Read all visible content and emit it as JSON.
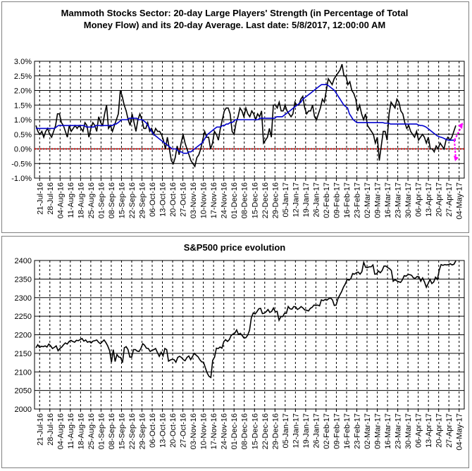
{
  "chart_data": [
    {
      "type": "line",
      "title_lines": [
        "Mammoth Stocks Sector: 20-day Large Players' Strength (in Percentage of Total",
        "Money Flow) and its 20-day Average. Last date: 5/8/2017, 12:00:00 AM"
      ],
      "ylim": [
        -1.0,
        3.0
      ],
      "yticks": [
        "-1.0%",
        "-0.5%",
        "0.0%",
        "0.5%",
        "1.0%",
        "1.5%",
        "2.0%",
        "2.5%",
        "3.0%"
      ],
      "x_tick_labels": [
        "21-Jul-16",
        "28-Jul-16",
        "04-Aug-16",
        "11-Aug-16",
        "18-Aug-16",
        "25-Aug-16",
        "01-Sep-16",
        "08-Sep-16",
        "15-Sep-16",
        "22-Sep-16",
        "29-Sep-16",
        "06-Oct-16",
        "13-Oct-16",
        "20-Oct-16",
        "27-Oct-16",
        "03-Nov-16",
        "10-Nov-16",
        "17-Nov-16",
        "24-Nov-16",
        "01-Dec-16",
        "08-Dec-16",
        "15-Dec-16",
        "22-Dec-16",
        "29-Dec-16",
        "05-Jan-17",
        "12-Jan-17",
        "19-Jan-17",
        "26-Jan-17",
        "02-Feb-17",
        "09-Feb-17",
        "16-Feb-17",
        "23-Feb-17",
        "02-Mar-17",
        "09-Mar-17",
        "16-Mar-17",
        "23-Mar-17",
        "30-Mar-17",
        "06-Apr-17",
        "13-Apr-17",
        "20-Apr-17",
        "27-Apr-17",
        "04-May-17"
      ],
      "grid": true,
      "series": [
        {
          "color": "#000000",
          "values": [
            0.8,
            0.6,
            0.5,
            0.6,
            0.4,
            0.6,
            0.7,
            0.5,
            0.4,
            0.6,
            0.8,
            1.2,
            1.2,
            0.9,
            0.8,
            0.6,
            0.4,
            0.8,
            0.6,
            0.7,
            0.8,
            0.7,
            0.8,
            0.7,
            0.6,
            0.9,
            0.8,
            0.4,
            0.7,
            0.9,
            0.8,
            0.6,
            1.1,
            0.9,
            0.8,
            1.2,
            1.5,
            0.7,
            0.8,
            0.6,
            0.8,
            1.0,
            1.2,
            2.0,
            1.8,
            1.5,
            1.3,
            1.0,
            0.8,
            1.2,
            0.9,
            0.6,
            1.0,
            1.2,
            1.0,
            0.7,
            0.7,
            0.9,
            0.6,
            0.7,
            0.5,
            0.7,
            0.6,
            0.6,
            0.5,
            0.3,
            0.0,
            0.4,
            0.0,
            -0.4,
            -0.5,
            -0.3,
            0.1,
            -0.2,
            0.2,
            0.5,
            0.2,
            0.0,
            -0.2,
            -0.4,
            -0.5,
            -0.6,
            -0.3,
            -0.2,
            0.0,
            0.3,
            0.6,
            0.4,
            0.4,
            0.0,
            0.2,
            0.6,
            0.5,
            0.3,
            0.7,
            1.0,
            1.3,
            1.4,
            1.4,
            1.2,
            0.6,
            0.5,
            0.9,
            1.1,
            1.4,
            1.3,
            1.1,
            1.4,
            1.2,
            1.1,
            1.3,
            1.2,
            1.0,
            1.2,
            1.1,
            1.3,
            0.2,
            0.3,
            0.4,
            0.7,
            0.4,
            1.5,
            1.5,
            1.4,
            1.6,
            1.3,
            1.3,
            1.5,
            1.3,
            1.2,
            1.1,
            1.2,
            1.6,
            1.5,
            1.5,
            1.7,
            1.8,
            1.4,
            1.2,
            1.3,
            1.3,
            1.5,
            1.1,
            1.0,
            1.2,
            1.4,
            1.7,
            1.6,
            2.0,
            2.4,
            2.3,
            2.2,
            2.4,
            2.5,
            2.6,
            2.7,
            2.9,
            2.5,
            2.5,
            2.2,
            2.3,
            2.0,
            1.9,
            1.7,
            1.3,
            1.5,
            1.2,
            1.0,
            1.2,
            0.8,
            0.7,
            0.6,
            0.5,
            0.2,
            0.4,
            -0.4,
            0.1,
            0.6,
            0.6,
            0.3,
            1.2,
            1.6,
            1.5,
            1.4,
            1.7,
            1.6,
            1.3,
            1.2,
            0.9,
            0.7,
            0.8,
            0.6,
            0.5,
            0.4,
            0.6,
            0.3,
            0.4,
            0.5,
            0.4,
            0.2,
            0.4,
            0.0,
            0.0,
            -0.1,
            0.1,
            0.0,
            0.2,
            0.1,
            0.0,
            0.3,
            0.4,
            0.3,
            0.4,
            0.6,
            0.8
          ]
        },
        {
          "color": "#0000cc",
          "values": [
            0.7,
            0.7,
            0.7,
            0.7,
            0.7,
            0.7,
            0.7,
            0.7,
            0.7,
            0.7,
            0.7,
            0.75,
            0.8,
            0.8,
            0.8,
            0.8,
            0.8,
            0.8,
            0.8,
            0.8,
            0.8,
            0.8,
            0.8,
            0.8,
            0.8,
            0.8,
            0.8,
            0.75,
            0.75,
            0.75,
            0.75,
            0.75,
            0.8,
            0.8,
            0.8,
            0.8,
            0.8,
            0.8,
            0.8,
            0.8,
            0.8,
            0.8,
            0.85,
            0.85,
            0.9,
            0.95,
            1.0,
            1.0,
            1.0,
            1.0,
            1.05,
            1.05,
            1.05,
            1.05,
            1.05,
            1.0,
            1.0,
            1.0,
            0.95,
            0.9,
            0.8,
            0.7,
            0.6,
            0.5,
            0.45,
            0.4,
            0.35,
            0.3,
            0.25,
            0.2,
            0.15,
            0.1,
            0.05,
            0.0,
            0.0,
            0.0,
            -0.05,
            -0.1,
            -0.1,
            -0.15,
            -0.15,
            -0.15,
            -0.1,
            -0.1,
            -0.05,
            0.0,
            0.05,
            0.1,
            0.15,
            0.2,
            0.3,
            0.4,
            0.5,
            0.55,
            0.6,
            0.65,
            0.7,
            0.75,
            0.75,
            0.75,
            0.8,
            0.8,
            0.85,
            0.85,
            0.9,
            0.9,
            0.95,
            1.0,
            1.0,
            1.0,
            1.0,
            1.0,
            1.0,
            1.0,
            1.0,
            1.0,
            1.0,
            1.0,
            1.0,
            1.0,
            1.05,
            1.05,
            1.05,
            1.05,
            1.05,
            1.05,
            1.05,
            1.05,
            1.05,
            1.1,
            1.1,
            1.1,
            1.1,
            1.15,
            1.2,
            1.25,
            1.3,
            1.35,
            1.4,
            1.45,
            1.5,
            1.55,
            1.6,
            1.7,
            1.75,
            1.8,
            1.85,
            1.9,
            1.95,
            2.0,
            2.05,
            2.1,
            2.15,
            2.2,
            2.2,
            2.2,
            2.2,
            2.15,
            2.1,
            2.05,
            2.0,
            1.9,
            1.8,
            1.7,
            1.6,
            1.5,
            1.45,
            1.4,
            1.2,
            1.1,
            1.0,
            0.95,
            0.9,
            0.9,
            0.9,
            0.9,
            0.9,
            0.9,
            0.9,
            0.9,
            0.9,
            0.9,
            0.9,
            0.9,
            0.9,
            0.9,
            0.9,
            0.88,
            0.88,
            0.88,
            0.85,
            0.85,
            0.85,
            0.85,
            0.85,
            0.85,
            0.85,
            0.85,
            0.85,
            0.85,
            0.85,
            0.85,
            0.85,
            0.85,
            0.85,
            0.82,
            0.8,
            0.8,
            0.78,
            0.75,
            0.7,
            0.65,
            0.6,
            0.55,
            0.5,
            0.45,
            0.42,
            0.4,
            0.38,
            0.35,
            0.32,
            0.3,
            0.3,
            0.3,
            0.3,
            0.3
          ]
        }
      ],
      "zero_line_color": "#cc0000",
      "forecast_arrows_color": "#ff00ff"
    },
    {
      "type": "line",
      "title": "S&P500 price evolution",
      "ylim": [
        2000,
        2400
      ],
      "yticks": [
        "2000",
        "2050",
        "2100",
        "2150",
        "2200",
        "2250",
        "2300",
        "2350",
        "2400"
      ],
      "x_tick_labels": [
        "21-Jul-16",
        "28-Jul-16",
        "04-Aug-16",
        "11-Aug-16",
        "18-Aug-16",
        "25-Aug-16",
        "01-Sep-16",
        "08-Sep-16",
        "15-Sep-16",
        "22-Sep-16",
        "29-Sep-16",
        "06-Oct-16",
        "13-Oct-16",
        "20-Oct-16",
        "27-Oct-16",
        "03-Nov-16",
        "10-Nov-16",
        "17-Nov-16",
        "24-Nov-16",
        "01-Dec-16",
        "08-Dec-16",
        "15-Dec-16",
        "22-Dec-16",
        "29-Dec-16",
        "05-Jan-17",
        "12-Jan-17",
        "19-Jan-17",
        "26-Jan-17",
        "02-Feb-17",
        "09-Feb-17",
        "16-Feb-17",
        "23-Feb-17",
        "02-Mar-17",
        "09-Mar-17",
        "16-Mar-17",
        "23-Mar-17",
        "30-Mar-17",
        "06-Apr-17",
        "13-Apr-17",
        "20-Apr-17",
        "27-Apr-17",
        "04-May-17"
      ],
      "grid": true,
      "series": [
        {
          "color": "#000000",
          "values": [
            2165,
            2173,
            2166,
            2169,
            2168,
            2170,
            2167,
            2175,
            2170,
            2163,
            2166,
            2170,
            2157,
            2163,
            2167,
            2173,
            2178,
            2175,
            2182,
            2185,
            2182,
            2180,
            2185,
            2184,
            2187,
            2190,
            2183,
            2186,
            2180,
            2182,
            2178,
            2183,
            2184,
            2186,
            2180,
            2176,
            2181,
            2186,
            2179,
            2170,
            2157,
            2126,
            2160,
            2128,
            2147,
            2140,
            2139,
            2125,
            2165,
            2168,
            2160,
            2140,
            2140,
            2160,
            2160,
            2156,
            2155,
            2163,
            2176,
            2172,
            2164,
            2163,
            2155,
            2158,
            2160,
            2163,
            2152,
            2142,
            2153,
            2143,
            2163,
            2160,
            2129,
            2132,
            2134,
            2133,
            2126,
            2139,
            2142,
            2139,
            2133,
            2130,
            2139,
            2143,
            2133,
            2141,
            2150,
            2145,
            2141,
            2133,
            2127,
            2126,
            2111,
            2097,
            2088,
            2085,
            2131,
            2140,
            2164,
            2163,
            2167,
            2164,
            2181,
            2187,
            2182,
            2187,
            2198,
            2202,
            2204,
            2213,
            2201,
            2204,
            2198,
            2191,
            2192,
            2199,
            2212,
            2246,
            2259,
            2256,
            2262,
            2270,
            2271,
            2257,
            2258,
            2262,
            2268,
            2260,
            2263,
            2272,
            2262,
            2263,
            2239,
            2249,
            2249,
            2258,
            2258,
            2276,
            2270,
            2269,
            2276,
            2275,
            2268,
            2271,
            2276,
            2272,
            2267,
            2266,
            2264,
            2271,
            2274,
            2280,
            2279,
            2280,
            2278,
            2294,
            2292,
            2295,
            2293,
            2297,
            2299,
            2294,
            2279,
            2280,
            2297,
            2307,
            2316,
            2328,
            2337,
            2349,
            2347,
            2351,
            2365,
            2363,
            2367,
            2369,
            2363,
            2370,
            2395,
            2382,
            2381,
            2383,
            2383,
            2388,
            2363,
            2364,
            2372,
            2367,
            2373,
            2385,
            2385,
            2381,
            2378,
            2373,
            2344,
            2348,
            2345,
            2343,
            2341,
            2348,
            2359,
            2358,
            2362,
            2362,
            2360,
            2353,
            2352,
            2357,
            2356,
            2344,
            2353,
            2342,
            2328,
            2338,
            2349,
            2338,
            2342,
            2355,
            2349,
            2374,
            2389,
            2387,
            2389,
            2388,
            2389,
            2391,
            2388,
            2390,
            2399
          ]
        }
      ]
    }
  ]
}
